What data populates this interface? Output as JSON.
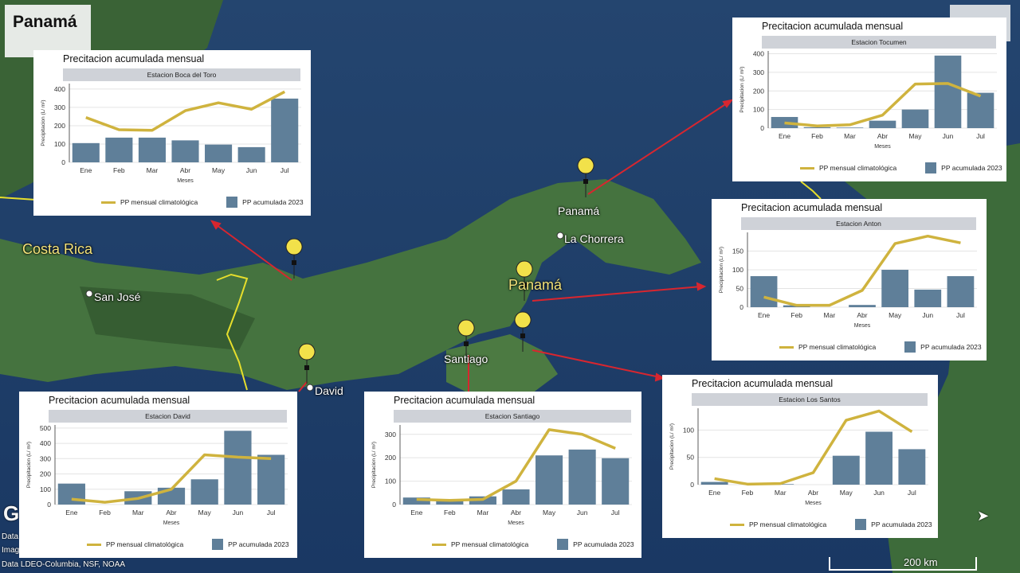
{
  "map": {
    "title": "Panamá",
    "labels": {
      "costa_rica": "Costa Rica",
      "san_jose": "San José",
      "panama_country": "Panamá",
      "panama_city": "Panamá",
      "la_chorrera": "La Chorrera",
      "santiago": "Santiago",
      "david": "David"
    },
    "attribution": [
      "Data S",
      "Image",
      "Data LDEO-Columbia, NSF, NOAA"
    ],
    "logo": "G",
    "scale": "200 km",
    "colors": {
      "sea": "#1d3e6e",
      "land": "#3f6b3c",
      "border": "#e6de2c",
      "arrow": "#d8262f",
      "pin": "#f2e14a"
    }
  },
  "chart_data": [
    {
      "type": "bar",
      "title": "Precitacion acumulada mensual",
      "station": "Estacion Boca del Toro",
      "xlabel": "Meses",
      "ylabel": "Precipitacion (L/ m²)",
      "categories": [
        "Ene",
        "Feb",
        "Mar",
        "Abr",
        "May",
        "Jun",
        "Jul"
      ],
      "ylim": [
        0,
        430
      ],
      "yticks": [
        0,
        100,
        200,
        300,
        400
      ],
      "series": [
        {
          "name": "PP mensual climatológica",
          "kind": "line",
          "values": [
            245,
            178,
            175,
            282,
            325,
            290,
            385
          ]
        },
        {
          "name": "PP acumulada 2023",
          "kind": "bar",
          "values": [
            105,
            135,
            135,
            120,
            97,
            83,
            348
          ]
        }
      ]
    },
    {
      "type": "bar",
      "title": "Precitacion acumulada mensual",
      "station": "Estacion Tocumen",
      "xlabel": "Meses",
      "ylabel": "Precipitacion (L/ m²)",
      "categories": [
        "Ene",
        "Feb",
        "Mar",
        "Abr",
        "May",
        "Jun",
        "Jul"
      ],
      "ylim": [
        0,
        415
      ],
      "yticks": [
        0,
        100,
        200,
        300,
        400
      ],
      "series": [
        {
          "name": "PP mensual climatológica",
          "kind": "line",
          "values": [
            28,
            12,
            18,
            70,
            237,
            240,
            172
          ]
        },
        {
          "name": "PP acumulada 2023",
          "kind": "bar",
          "values": [
            60,
            5,
            3,
            40,
            100,
            390,
            190
          ]
        }
      ]
    },
    {
      "type": "bar",
      "title": "Precitacion acumulada mensual",
      "station": "Estacion Anton",
      "xlabel": "Meses",
      "ylabel": "Precipitacion (L/ m²)",
      "categories": [
        "Ene",
        "Feb",
        "Mar",
        "Abr",
        "May",
        "Jun",
        "Jul"
      ],
      "ylim": [
        0,
        200
      ],
      "yticks": [
        0,
        50,
        100,
        150
      ],
      "series": [
        {
          "name": "PP mensual climatológica",
          "kind": "line",
          "values": [
            27,
            5,
            5,
            45,
            170,
            190,
            172
          ]
        },
        {
          "name": "PP acumulada 2023",
          "kind": "bar",
          "values": [
            83,
            5,
            0,
            6,
            100,
            47,
            83
          ]
        }
      ]
    },
    {
      "type": "bar",
      "title": "Precitacion acumulada mensual",
      "station": "Estacion David",
      "xlabel": "Meses",
      "ylabel": "Precipitacion (L/ m²)",
      "categories": [
        "Ene",
        "Feb",
        "Mar",
        "Abr",
        "May",
        "Jun",
        "Jul"
      ],
      "ylim": [
        0,
        520
      ],
      "yticks": [
        0,
        100,
        200,
        300,
        400,
        500
      ],
      "series": [
        {
          "name": "PP mensual climatológica",
          "kind": "line",
          "values": [
            35,
            15,
            40,
            100,
            325,
            310,
            300
          ]
        },
        {
          "name": "PP acumulada 2023",
          "kind": "bar",
          "values": [
            137,
            0,
            87,
            110,
            165,
            482,
            325
          ]
        }
      ]
    },
    {
      "type": "bar",
      "title": "Precitacion acumulada mensual",
      "station": "Estacion Santiago",
      "xlabel": "Meses",
      "ylabel": "Precipitacion (L/ m²)",
      "categories": [
        "Ene",
        "Feb",
        "Mar",
        "Abr",
        "May",
        "Jun",
        "Jul"
      ],
      "ylim": [
        0,
        340
      ],
      "yticks": [
        0,
        100,
        200,
        300
      ],
      "series": [
        {
          "name": "PP mensual climatológica",
          "kind": "line",
          "values": [
            22,
            18,
            22,
            100,
            320,
            300,
            240
          ]
        },
        {
          "name": "PP acumulada 2023",
          "kind": "bar",
          "values": [
            30,
            20,
            35,
            65,
            210,
            235,
            198
          ]
        }
      ]
    },
    {
      "type": "bar",
      "title": "Precitacion acumulada mensual",
      "station": "Estacion Los Santos",
      "xlabel": "Meses",
      "ylabel": "Precipitacion (L/ m²)",
      "categories": [
        "Ene",
        "Feb",
        "Mar",
        "Abr",
        "May",
        "Jun",
        "Jul"
      ],
      "ylim": [
        0,
        140
      ],
      "yticks": [
        0,
        50,
        100
      ],
      "series": [
        {
          "name": "PP mensual climatológica",
          "kind": "line",
          "values": [
            11,
            1,
            2,
            22,
            118,
            135,
            97
          ]
        },
        {
          "name": "PP acumulada 2023",
          "kind": "bar",
          "values": [
            5,
            0,
            1,
            0,
            53,
            97,
            65
          ]
        }
      ]
    }
  ]
}
